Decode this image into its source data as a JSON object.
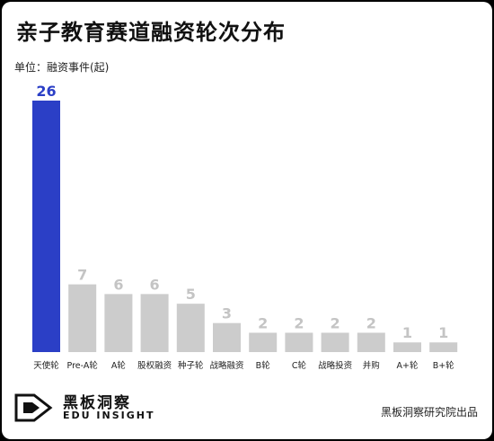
{
  "title": "亲子教育赛道融资轮次分布",
  "unit_label": "单位：融资事件(起)",
  "chart_data": {
    "type": "bar",
    "title": "亲子教育赛道融资轮次分布",
    "ylabel": "单位：融资事件(起)",
    "categories": [
      "天使轮",
      "Pre-A轮",
      "A轮",
      "股权融资",
      "种子轮",
      "战略融资",
      "B轮",
      "C轮",
      "战略投资",
      "并购",
      "A+轮",
      "B+轮"
    ],
    "values": [
      26,
      7,
      6,
      6,
      5,
      3,
      2,
      2,
      2,
      2,
      1,
      1
    ],
    "ylim": [
      0,
      26
    ],
    "grid": false,
    "legend": "none",
    "colors": {
      "highlight": "#2b3fc6",
      "default": "#cccccc",
      "highlight_label": "#2b3fc6",
      "default_label": "#c4c4c4"
    }
  },
  "brand": {
    "name_cn": "黑板洞察",
    "name_en": "EDU INSIGHT",
    "logo_icon": "play-bracket-logo"
  },
  "source": "黑板洞察研究院出品"
}
